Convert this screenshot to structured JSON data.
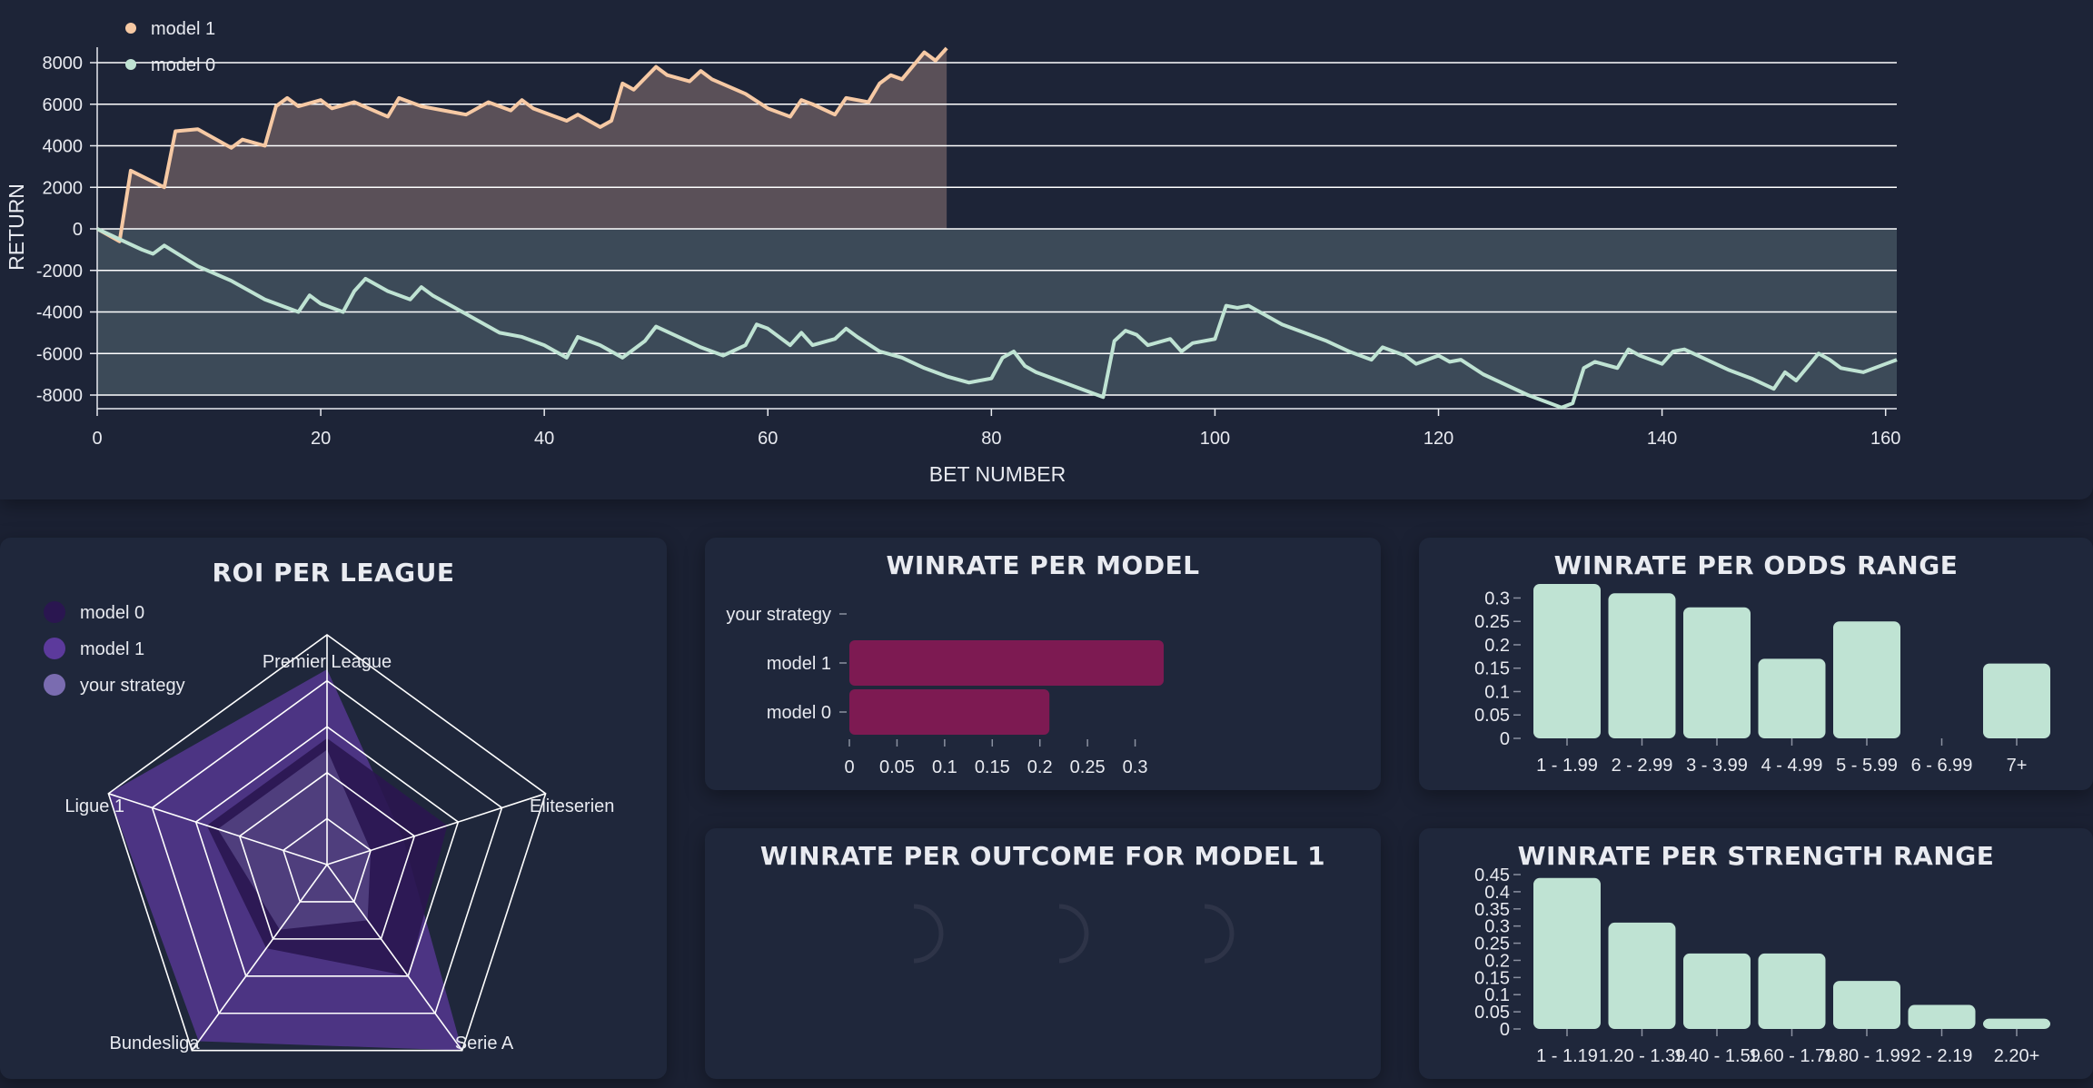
{
  "colors": {
    "model1_line": "#f6c9a4",
    "model0_line": "#bfe3d3",
    "model1_fill": "#5a5058",
    "model0_fill": "#3c4a58",
    "bar_magenta": "#7d1a52",
    "bar_mint": "#bfe3d3",
    "radar_model0": "#2a1650",
    "radar_model1": "#5c3a9c",
    "radar_strategy": "#7a6cb0"
  },
  "top_chart": {
    "legend": [
      "model 1",
      "model 0"
    ],
    "xlabel": "BET NUMBER",
    "ylabel": "RETURN",
    "yticks": [
      "8000",
      "6000",
      "4000",
      "2000",
      "0",
      "-2000",
      "-4000",
      "-6000",
      "-8000"
    ],
    "xticks": [
      "0",
      "20",
      "40",
      "60",
      "80",
      "100",
      "120",
      "140",
      "160"
    ]
  },
  "roi_card": {
    "title": "ROI PER LEAGUE",
    "legend": [
      "model 0",
      "model 1",
      "your strategy"
    ]
  },
  "winrate_model_card": {
    "title": "WINRATE PER MODEL"
  },
  "outcome_card": {
    "title": "WINRATE PER OUTCOME FOR MODEL 1"
  },
  "odds_card": {
    "title": "WINRATE PER ODDS RANGE"
  },
  "strength_card": {
    "title": "WINRATE PER STRENGTH RANGE"
  },
  "chart_data": [
    {
      "type": "area",
      "xlabel": "BET NUMBER",
      "ylabel": "RETURN",
      "xlim": [
        0,
        161
      ],
      "ylim": [
        -8500,
        8500
      ],
      "grid": true,
      "legend_position": "top-left",
      "series": [
        {
          "name": "model 1",
          "x": [
            0,
            2,
            3,
            6,
            7,
            9,
            12,
            13,
            15,
            16,
            17,
            18,
            20,
            21,
            23,
            26,
            27,
            29,
            31,
            33,
            35,
            37,
            38,
            39,
            42,
            43,
            45,
            46,
            47,
            48,
            50,
            51,
            53,
            54,
            55,
            58,
            60,
            62,
            63,
            64,
            66,
            67,
            69,
            70,
            71,
            72,
            74,
            75,
            76
          ],
          "y": [
            0,
            -600,
            2800,
            2000,
            4700,
            4800,
            3900,
            4300,
            4000,
            5900,
            6300,
            5900,
            6200,
            5800,
            6100,
            5400,
            6300,
            5900,
            5700,
            5500,
            6100,
            5700,
            6200,
            5800,
            5200,
            5500,
            4900,
            5200,
            7000,
            6700,
            7800,
            7400,
            7100,
            7600,
            7200,
            6500,
            5800,
            5400,
            6200,
            6000,
            5500,
            6300,
            6100,
            7000,
            7400,
            7200,
            8500,
            8100,
            8700
          ]
        },
        {
          "name": "model 0",
          "x": [
            0,
            4,
            5,
            6,
            9,
            12,
            15,
            18,
            19,
            20,
            22,
            23,
            24,
            26,
            28,
            29,
            30,
            32,
            34,
            36,
            38,
            40,
            42,
            43,
            45,
            47,
            49,
            50,
            52,
            54,
            56,
            58,
            59,
            60,
            62,
            63,
            64,
            66,
            67,
            68,
            70,
            72,
            74,
            76,
            78,
            80,
            81,
            82,
            83,
            84,
            86,
            88,
            90,
            91,
            92,
            93,
            94,
            96,
            97,
            98,
            100,
            101,
            102,
            103,
            104,
            106,
            108,
            110,
            112,
            114,
            115,
            117,
            118,
            120,
            121,
            122,
            124,
            126,
            128,
            130,
            131,
            132,
            133,
            134,
            136,
            137,
            138,
            140,
            141,
            142,
            144,
            146,
            148,
            150,
            151,
            152,
            154,
            155,
            156,
            158,
            160,
            161
          ],
          "y": [
            0,
            -1000,
            -1200,
            -800,
            -1800,
            -2500,
            -3400,
            -4000,
            -3200,
            -3600,
            -4000,
            -3000,
            -2400,
            -3000,
            -3400,
            -2800,
            -3200,
            -3800,
            -4400,
            -5000,
            -5200,
            -5600,
            -6200,
            -5200,
            -5600,
            -6200,
            -5400,
            -4700,
            -5200,
            -5700,
            -6100,
            -5600,
            -4600,
            -4800,
            -5600,
            -5000,
            -5600,
            -5300,
            -4800,
            -5200,
            -5900,
            -6200,
            -6700,
            -7100,
            -7400,
            -7200,
            -6200,
            -5900,
            -6600,
            -6900,
            -7300,
            -7700,
            -8100,
            -5400,
            -4900,
            -5100,
            -5600,
            -5300,
            -5900,
            -5500,
            -5300,
            -3700,
            -3800,
            -3700,
            -4000,
            -4600,
            -5000,
            -5400,
            -5900,
            -6300,
            -5700,
            -6100,
            -6500,
            -6100,
            -6400,
            -6300,
            -7000,
            -7500,
            -8000,
            -8400,
            -8600,
            -8400,
            -6700,
            -6400,
            -6700,
            -5800,
            -6100,
            -6500,
            -5900,
            -5800,
            -6300,
            -6800,
            -7200,
            -7700,
            -6900,
            -7300,
            -6000,
            -6300,
            -6700,
            -6900,
            -6500,
            -6300
          ]
        }
      ]
    },
    {
      "type": "radar",
      "title": "ROI PER LEAGUE",
      "categories": [
        "Premier League",
        "Eliteserien",
        "Serie A",
        "Bundesliga",
        "Ligue 1"
      ],
      "series": [
        {
          "name": "model 0",
          "values": [
            0.55,
            0.55,
            0.6,
            0.45,
            0.55
          ]
        },
        {
          "name": "model 1",
          "values": [
            0.85,
            0.35,
            1.0,
            0.95,
            1.0
          ]
        },
        {
          "name": "your strategy",
          "values": [
            0.5,
            0.2,
            0.3,
            0.35,
            0.5
          ]
        }
      ]
    },
    {
      "type": "bar",
      "orientation": "horizontal",
      "title": "WINRATE PER MODEL",
      "categories": [
        "your strategy",
        "model 1",
        "model 0"
      ],
      "values": [
        0,
        0.33,
        0.21
      ],
      "xlim": [
        0,
        0.35
      ],
      "xticks": [
        "0",
        "0.05",
        "0.1",
        "0.15",
        "0.2",
        "0.25",
        "0.3"
      ]
    },
    {
      "type": "bar",
      "title": "WINRATE PER ODDS RANGE",
      "categories": [
        "1 - 1.99",
        "2 - 2.99",
        "3 - 3.99",
        "4 - 4.99",
        "5 - 5.99",
        "6 - 6.99",
        "7+"
      ],
      "values": [
        0.33,
        0.31,
        0.28,
        0.17,
        0.25,
        0,
        0.16
      ],
      "ylim": [
        0,
        0.33
      ],
      "yticks": [
        "0",
        "0.05",
        "0.1",
        "0.15",
        "0.2",
        "0.25",
        "0.3"
      ]
    },
    {
      "type": "bar",
      "title": "WINRATE PER STRENGTH RANGE",
      "categories": [
        "1 - 1.19",
        "1.20 - 1.39",
        "1.40 - 1.59",
        "1.60 - 1.79",
        "1.80 - 1.99",
        "2 - 2.19",
        "2.20+"
      ],
      "values": [
        0.44,
        0.31,
        0.22,
        0.22,
        0.14,
        0.07,
        0.03
      ],
      "ylim": [
        0,
        0.45
      ],
      "yticks": [
        "0",
        "0.05",
        "0.1",
        "0.15",
        "0.2",
        "0.25",
        "0.3",
        "0.35",
        "0.4",
        "0.45"
      ]
    }
  ]
}
